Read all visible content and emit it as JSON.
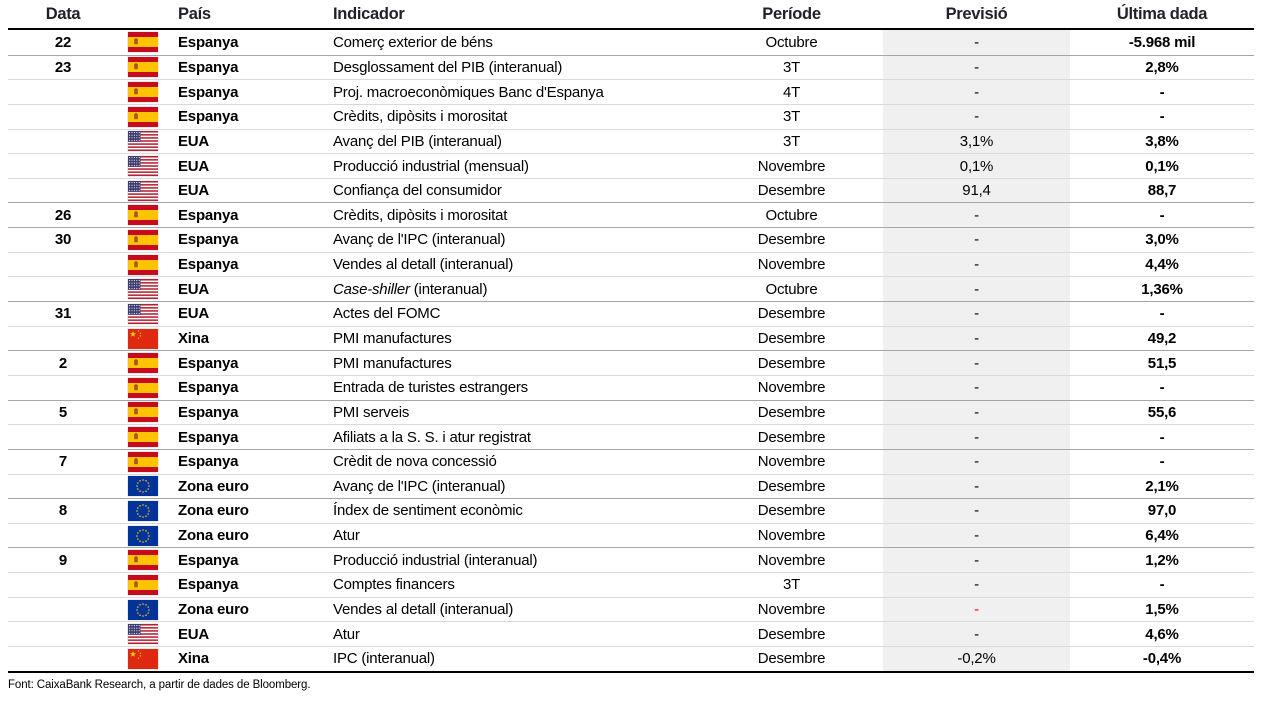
{
  "table": {
    "headers": {
      "date": "Data",
      "country": "País",
      "indicator": "Indicador",
      "period": "Període",
      "forecast": "Previsió",
      "last": "Última dada"
    },
    "rows": [
      {
        "date": "22",
        "flag": "es",
        "country": "Espanya",
        "indicator": "Comerç exterior de béns",
        "period": "Octubre",
        "forecast": "-",
        "last": "-5.968 mil"
      },
      {
        "date": "23",
        "flag": "es",
        "country": "Espanya",
        "indicator": "Desglossament del PIB (interanual)",
        "period": "3T",
        "forecast": "-",
        "last": "2,8%"
      },
      {
        "date": "",
        "flag": "es",
        "country": "Espanya",
        "indicator": "Proj. macroeconòmiques Banc d'Espanya",
        "period": "4T",
        "forecast": "-",
        "last": "-"
      },
      {
        "date": "",
        "flag": "es",
        "country": "Espanya",
        "indicator": "Crèdits, dipòsits i morositat",
        "period": "3T",
        "forecast": "-",
        "last": "-"
      },
      {
        "date": "",
        "flag": "us",
        "country": "EUA",
        "indicator": "Avanç del PIB (interanual)",
        "period": "3T",
        "forecast": "3,1%",
        "last": "3,8%"
      },
      {
        "date": "",
        "flag": "us",
        "country": "EUA",
        "indicator": "Producció industrial (mensual)",
        "period": "Novembre",
        "forecast": "0,1%",
        "last": "0,1%"
      },
      {
        "date": "",
        "flag": "us",
        "country": "EUA",
        "indicator": "Confiança del consumidor",
        "period": "Desembre",
        "forecast": "91,4",
        "last": "88,7"
      },
      {
        "date": "26",
        "flag": "es",
        "country": "Espanya",
        "indicator": "Crèdits, dipòsits i morositat",
        "period": "Octubre",
        "forecast": "-",
        "last": "-"
      },
      {
        "date": "30",
        "flag": "es",
        "country": "Espanya",
        "indicator": "Avanç de l'IPC (interanual)",
        "period": "Desembre",
        "forecast": "-",
        "last": "3,0%"
      },
      {
        "date": "",
        "flag": "es",
        "country": "Espanya",
        "indicator": "Vendes al detall (interanual)",
        "period": "Novembre",
        "forecast": "-",
        "last": "4,4%"
      },
      {
        "date": "",
        "flag": "us",
        "country": "EUA",
        "indicator_italic": "Case-shiller",
        "indicator": " (interanual)",
        "period": "Octubre",
        "forecast": "-",
        "last": "1,36%"
      },
      {
        "date": "31",
        "flag": "us",
        "country": "EUA",
        "indicator": "Actes del FOMC",
        "period": "Desembre",
        "forecast": "-",
        "last": "-"
      },
      {
        "date": "",
        "flag": "cn",
        "country": "Xina",
        "indicator": "PMI manufactures",
        "period": "Desembre",
        "forecast": "-",
        "last": "49,2"
      },
      {
        "date": "2",
        "flag": "es",
        "country": "Espanya",
        "indicator": "PMI manufactures",
        "period": "Desembre",
        "forecast": "-",
        "last": "51,5"
      },
      {
        "date": "",
        "flag": "es",
        "country": "Espanya",
        "indicator": "Entrada de turistes estrangers",
        "period": "Novembre",
        "forecast": "-",
        "last": "-"
      },
      {
        "date": "5",
        "flag": "es",
        "country": "Espanya",
        "indicator": "PMI serveis",
        "period": "Desembre",
        "forecast": "-",
        "last": "55,6"
      },
      {
        "date": "",
        "flag": "es",
        "country": "Espanya",
        "indicator": "Afiliats a la S. S. i atur registrat",
        "period": "Desembre",
        "forecast": "-",
        "last": "-"
      },
      {
        "date": "7",
        "flag": "es",
        "country": "Espanya",
        "indicator": "Crèdit de nova concessió",
        "period": "Novembre",
        "forecast": "-",
        "last": "-"
      },
      {
        "date": "",
        "flag": "eu",
        "country": "Zona euro",
        "indicator": "Avanç de l'IPC (interanual)",
        "period": "Desembre",
        "forecast": "-",
        "last": "2,1%"
      },
      {
        "date": "8",
        "flag": "eu",
        "country": "Zona euro",
        "indicator": "Índex de sentiment econòmic",
        "period": "Desembre",
        "forecast": "-",
        "last": "97,0"
      },
      {
        "date": "",
        "flag": "eu",
        "country": "Zona euro",
        "indicator": "Atur",
        "period": "Novembre",
        "forecast": "-",
        "last": "6,4%"
      },
      {
        "date": "9",
        "flag": "es",
        "country": "Espanya",
        "indicator": "Producció industrial (interanual)",
        "period": "Novembre",
        "forecast": "-",
        "last": "1,2%"
      },
      {
        "date": "",
        "flag": "es",
        "country": "Espanya",
        "indicator": "Comptes financers",
        "period": "3T",
        "forecast": "-",
        "last": "-"
      },
      {
        "date": "",
        "flag": "eu",
        "country": "Zona euro",
        "indicator": "Vendes al detall (interanual)",
        "period": "Novembre",
        "forecast": "-",
        "forecast_red": true,
        "last": "1,5%"
      },
      {
        "date": "",
        "flag": "us",
        "country": "EUA",
        "indicator": "Atur",
        "period": "Desembre",
        "forecast": "-",
        "last": "4,6%"
      },
      {
        "date": "",
        "flag": "cn",
        "country": "Xina",
        "indicator": "IPC (interanual)",
        "period": "Desembre",
        "forecast": "-0,2%",
        "last": "-0,4%"
      }
    ]
  },
  "footer": {
    "source": "Font: CaixaBank Research, a partir de dades de Bloomberg."
  },
  "icons": {
    "es": "spain-flag-icon",
    "us": "usa-flag-icon",
    "cn": "china-flag-icon",
    "eu": "eu-flag-icon"
  },
  "colors": {
    "forecast_column_bg": "#f0f0f0",
    "row_separator": "#d9d9d9",
    "date_group_separator": "#a6a6a6",
    "negative_forecast_dash": "#ff0000",
    "header_text": "#21212b",
    "spain_red": "#c60b1e",
    "spain_yellow": "#ffc400",
    "usa_blue": "#3c3b6e",
    "usa_red": "#b22234",
    "china_red": "#de2910",
    "china_yellow": "#ffde00",
    "eu_blue": "#003399",
    "eu_yellow": "#ffcc00"
  }
}
